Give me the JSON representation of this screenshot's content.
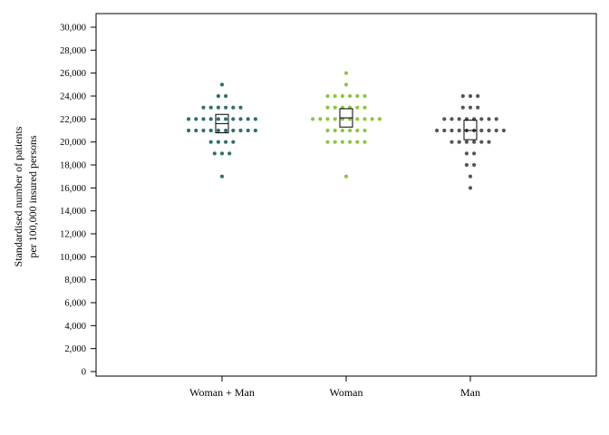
{
  "chart_data": {
    "type": "scatter",
    "subtype": "dot-plot-with-box",
    "title": "",
    "ylabel_lines": [
      "Standardised number of patients",
      "per 100,000 insured persons"
    ],
    "xlabel": "",
    "ylim": [
      0,
      30000
    ],
    "yticks": [
      0,
      2000,
      4000,
      6000,
      8000,
      10000,
      12000,
      14000,
      16000,
      18000,
      20000,
      22000,
      24000,
      26000,
      28000,
      30000
    ],
    "ytick_labels": [
      "0",
      "2,000",
      "4,000",
      "6,000",
      "8,000",
      "10,000",
      "12,000",
      "14,000",
      "16,000",
      "18,000",
      "20,000",
      "22,000",
      "24,000",
      "26,000",
      "28,000",
      "30,000"
    ],
    "grid": false,
    "legend": "none",
    "categories": [
      "Woman + Man",
      "Woman",
      "Man"
    ],
    "series": [
      {
        "color": "#2e6f6f",
        "values": [
          25000,
          24000,
          24000,
          23000,
          23000,
          23000,
          23000,
          23000,
          23000,
          22000,
          22000,
          22000,
          22000,
          22000,
          22000,
          22000,
          22000,
          22000,
          22000,
          21000,
          21000,
          21000,
          21000,
          21000,
          21000,
          21000,
          21000,
          21000,
          21000,
          20000,
          20000,
          20000,
          20000,
          19000,
          19000,
          19000,
          17000
        ],
        "box": {
          "q1": 20800,
          "median": 21600,
          "q3": 22400
        }
      },
      {
        "color": "#8cc63f",
        "values": [
          26000,
          25000,
          24000,
          24000,
          24000,
          24000,
          24000,
          24000,
          23000,
          23000,
          23000,
          23000,
          23000,
          23000,
          22000,
          22000,
          22000,
          22000,
          22000,
          22000,
          22000,
          22000,
          22000,
          22000,
          21000,
          21000,
          21000,
          21000,
          21000,
          21000,
          20000,
          20000,
          20000,
          20000,
          20000,
          20000,
          17000
        ],
        "box": {
          "q1": 21300,
          "median": 22100,
          "q3": 22900
        }
      },
      {
        "color": "#555555",
        "values": [
          24000,
          24000,
          24000,
          23000,
          23000,
          23000,
          22000,
          22000,
          22000,
          22000,
          22000,
          22000,
          22000,
          22000,
          21000,
          21000,
          21000,
          21000,
          21000,
          21000,
          21000,
          21000,
          21000,
          21000,
          20000,
          20000,
          20000,
          20000,
          20000,
          20000,
          19000,
          19000,
          18000,
          18000,
          17000,
          16000
        ],
        "box": {
          "q1": 20200,
          "median": 21000,
          "q3": 21900
        }
      }
    ]
  }
}
